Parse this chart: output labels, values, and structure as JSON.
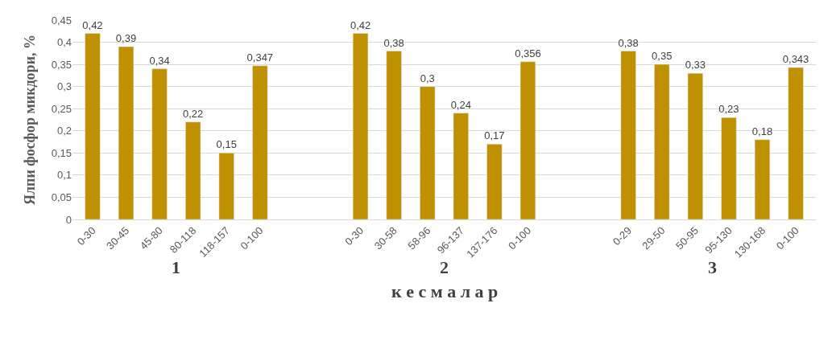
{
  "chart_data": {
    "type": "bar",
    "categories": [
      "0-30",
      "30-45",
      "45-80",
      "80-118",
      "118-157",
      "0-100",
      null,
      null,
      "0-30",
      "30-58",
      "58-96",
      "96-137",
      "137-176",
      "0-100",
      null,
      null,
      "0-29",
      "29-50",
      "50-95",
      "95-130",
      "130-168",
      "0-100"
    ],
    "values": [
      0.42,
      0.39,
      0.34,
      0.22,
      0.15,
      0.347,
      null,
      null,
      0.42,
      0.38,
      0.3,
      0.24,
      0.17,
      0.356,
      null,
      null,
      0.38,
      0.35,
      0.33,
      0.23,
      0.18,
      0.343
    ],
    "value_labels": [
      "0,42",
      "0,39",
      "0,34",
      "0,22",
      "0,15",
      "0,347",
      null,
      null,
      "0,42",
      "0,38",
      "0,3",
      "0,24",
      "0,17",
      "0,356",
      null,
      null,
      "0,38",
      "0,35",
      "0,33",
      "0,23",
      "0,18",
      "0,343"
    ],
    "color": "#bf9000",
    "ylabel": "Ялпи фосфор микдори, %",
    "xlabel": "к е с м а л а р",
    "annotations": [
      "1",
      "2",
      "3"
    ],
    "ylim": [
      0,
      0.45
    ],
    "yticks": [
      0,
      {
        "value": 0.05,
        "label": "0,05"
      },
      {
        "value": 0.1,
        "label": "0,1"
      },
      {
        "value": 0.15,
        "label": "0,15"
      },
      {
        "value": 0.2,
        "label": "0,2"
      },
      {
        "value": 0.25,
        "label": "0,25"
      },
      {
        "value": 0.3,
        "label": "0,3"
      },
      {
        "value": 0.35,
        "label": "0,35"
      },
      {
        "value": 0.4,
        "label": "0,4"
      },
      {
        "value": 0.45,
        "label": "0,45"
      }
    ],
    "grid": "y"
  }
}
